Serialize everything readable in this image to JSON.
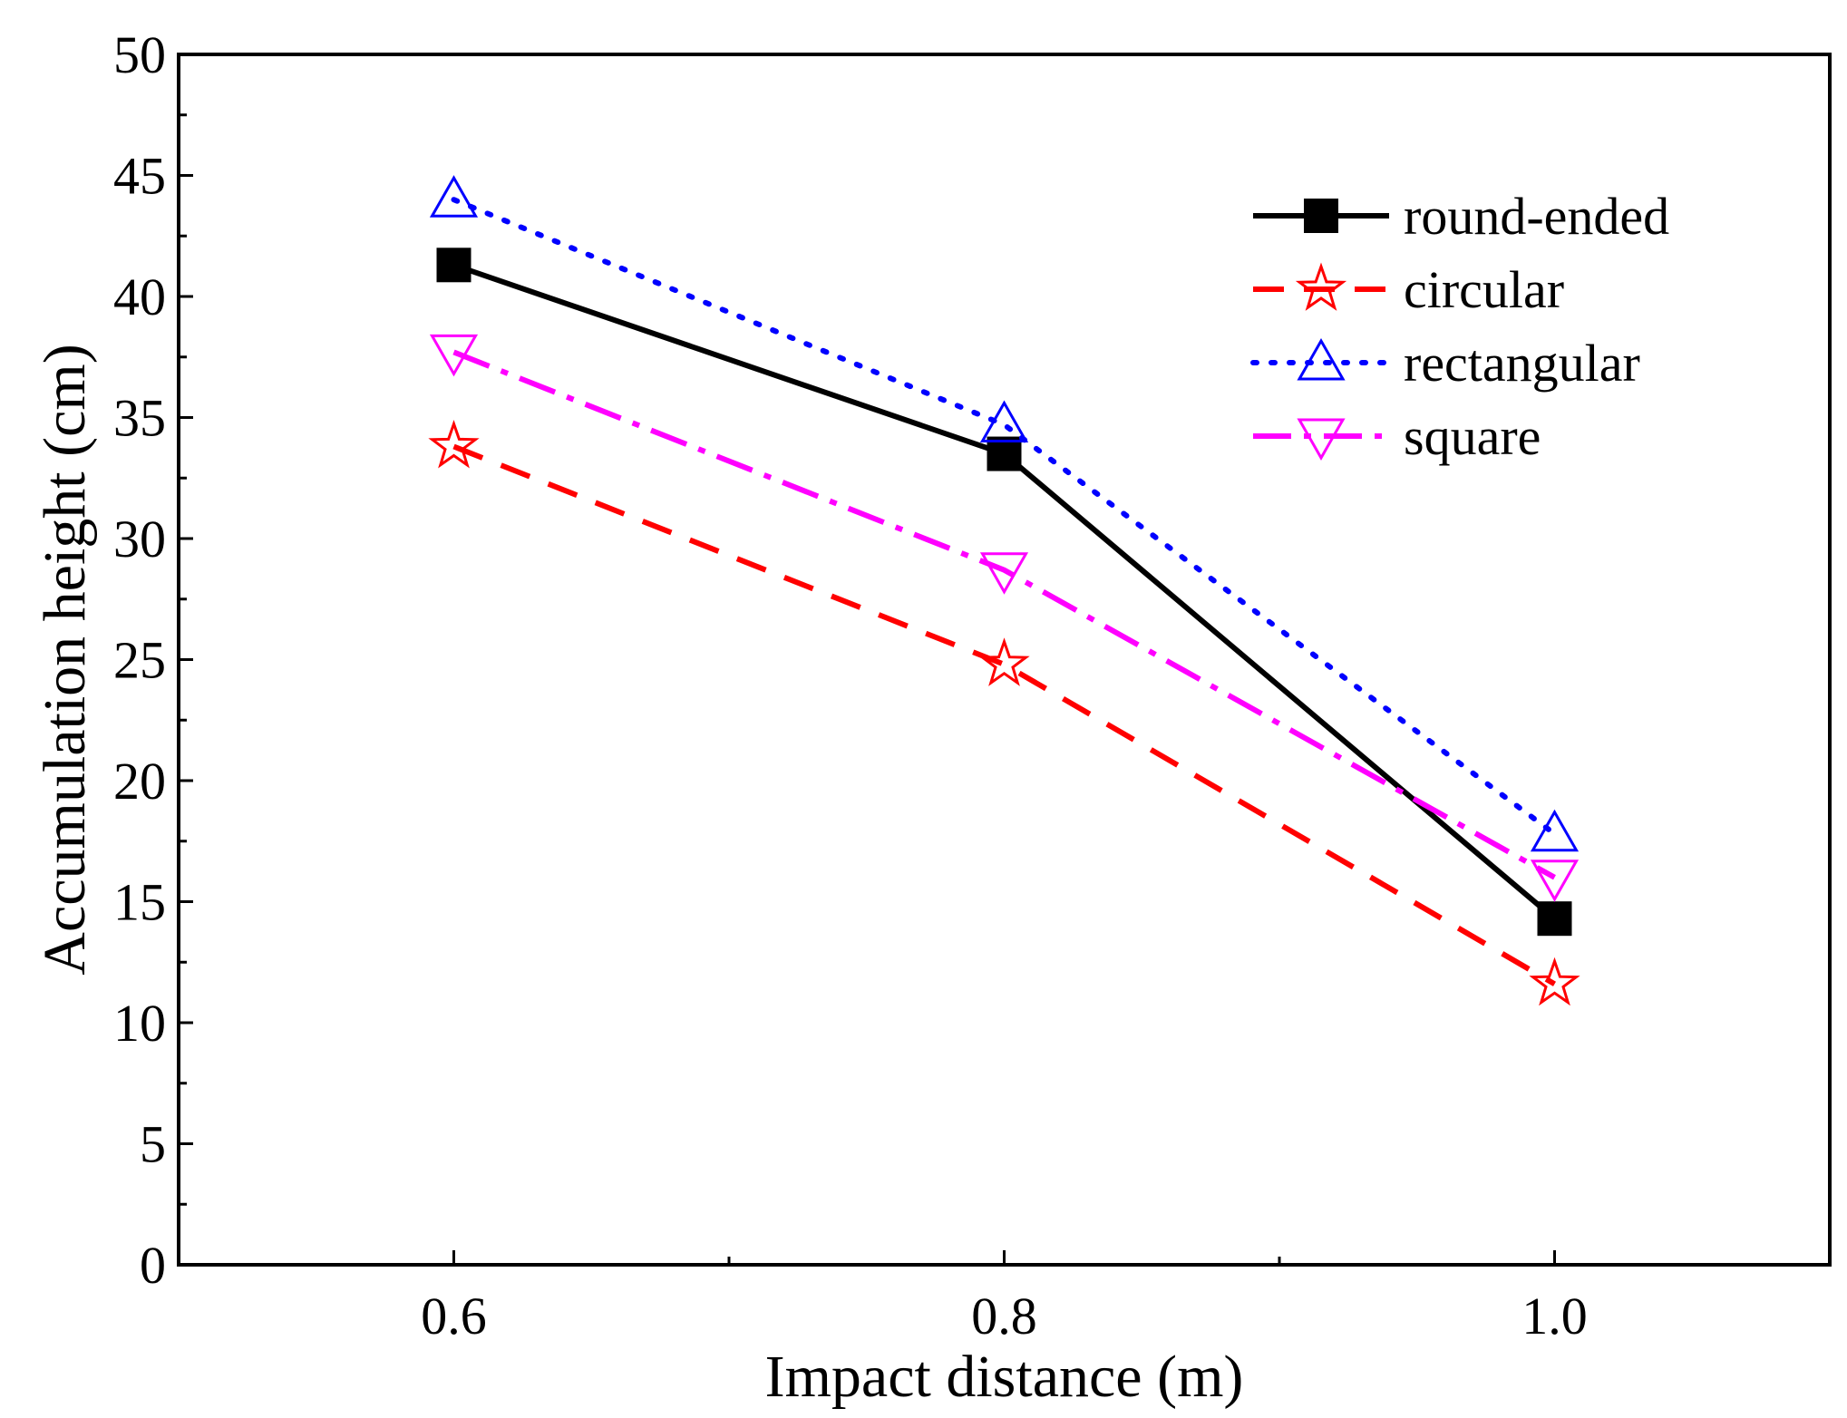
{
  "chart_data": {
    "type": "line",
    "title": "",
    "xlabel": "Impact distance (m)",
    "ylabel": "Accumulation height (cm)",
    "xlim": [
      0.5,
      1.1
    ],
    "ylim": [
      0,
      50
    ],
    "x_ticks": [
      0.6,
      0.8,
      1.0
    ],
    "x_tick_labels": [
      "0.6",
      "0.8",
      "1.0"
    ],
    "x_minor_ticks": [
      0.7,
      0.9
    ],
    "y_ticks": [
      0,
      5,
      10,
      15,
      20,
      25,
      30,
      35,
      40,
      45,
      50
    ],
    "y_tick_labels": [
      "0",
      "5",
      "10",
      "15",
      "20",
      "25",
      "30",
      "35",
      "40",
      "45",
      "50"
    ],
    "grid": false,
    "legend_position": "top-right",
    "x": [
      0.6,
      0.8,
      1.0
    ],
    "series": [
      {
        "name": "round-ended",
        "values": [
          41.3,
          33.5,
          14.3
        ],
        "color": "#000000",
        "line_style": "solid",
        "marker": "square-filled"
      },
      {
        "name": "circular",
        "values": [
          33.8,
          24.8,
          11.6
        ],
        "color": "#ff0000",
        "line_style": "dashed",
        "marker": "star-open"
      },
      {
        "name": "rectangular",
        "values": [
          44.0,
          34.7,
          17.8
        ],
        "color": "#0000ff",
        "line_style": "dotted",
        "marker": "triangle-up-open"
      },
      {
        "name": "square",
        "values": [
          37.7,
          28.7,
          16.0
        ],
        "color": "#ff00ff",
        "line_style": "dash-dot",
        "marker": "triangle-down-open"
      }
    ]
  }
}
